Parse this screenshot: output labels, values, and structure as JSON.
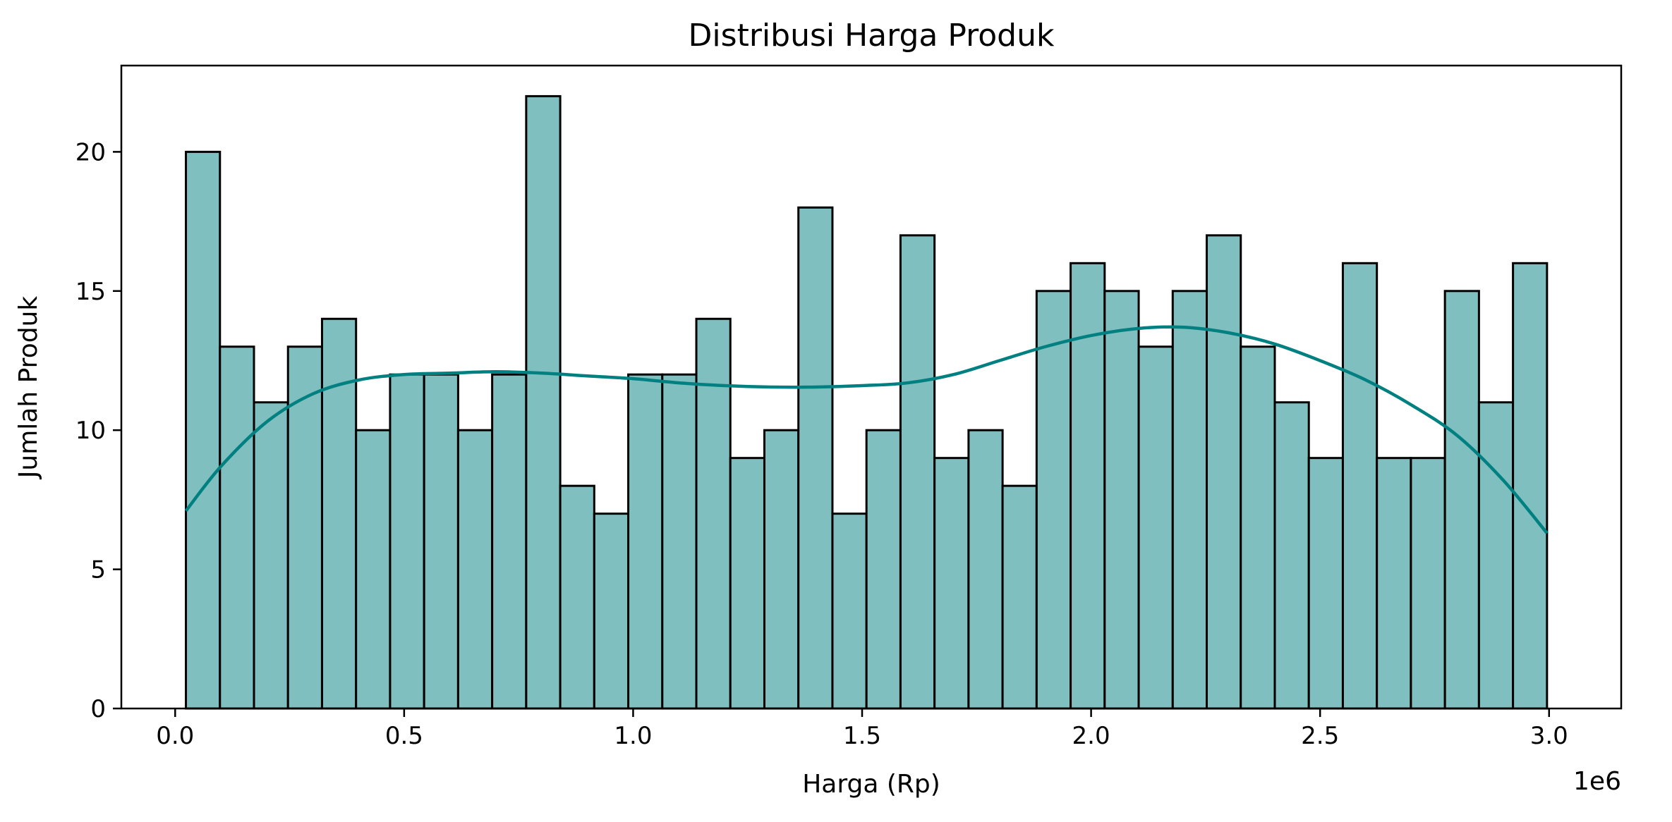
{
  "chart_data": {
    "type": "bar",
    "title": "Distribusi Harga Produk",
    "xlabel": "Harga (Rp)",
    "ylabel": "Jumlah Produk",
    "x_offset_label": "1e6",
    "x_scale": 1000000,
    "xlim": [
      -0.1175,
      3.1575
    ],
    "ylim": [
      0,
      23.1
    ],
    "x_ticks": [
      0.0,
      0.5,
      1.0,
      1.5,
      2.0,
      2.5,
      3.0
    ],
    "x_tick_labels": [
      "0.0",
      "0.5",
      "1.0",
      "1.5",
      "2.0",
      "2.5",
      "3.0"
    ],
    "y_ticks": [
      0,
      5,
      10,
      15,
      20
    ],
    "y_tick_labels": [
      "0",
      "5",
      "10",
      "15",
      "20"
    ],
    "grid": false,
    "bin_start": 0.0235,
    "bin_width": 0.0743,
    "values": [
      20,
      13,
      11,
      13,
      14,
      10,
      12,
      12,
      10,
      12,
      22,
      8,
      7,
      12,
      12,
      14,
      9,
      10,
      18,
      7,
      10,
      17,
      9,
      10,
      8,
      15,
      16,
      15,
      13,
      15,
      17,
      13,
      11,
      9,
      16,
      9,
      9,
      15,
      11,
      16
    ],
    "kde": {
      "x": [
        0.0235,
        0.1,
        0.2,
        0.3,
        0.4,
        0.5,
        0.6,
        0.7,
        0.8,
        0.9,
        1.0,
        1.1,
        1.2,
        1.3,
        1.4,
        1.5,
        1.6,
        1.7,
        1.8,
        1.9,
        2.0,
        2.1,
        2.2,
        2.3,
        2.4,
        2.5,
        2.6,
        2.7,
        2.8,
        2.9,
        2.9955
      ],
      "y": [
        7.1,
        8.7,
        10.3,
        11.3,
        11.8,
        12.0,
        12.05,
        12.1,
        12.05,
        11.95,
        11.85,
        11.7,
        11.6,
        11.55,
        11.55,
        11.6,
        11.7,
        12.0,
        12.5,
        13.0,
        13.4,
        13.65,
        13.7,
        13.5,
        13.1,
        12.5,
        11.8,
        10.9,
        9.8,
        8.2,
        6.3
      ]
    },
    "colors": {
      "bar_fill": "#80bfbf",
      "bar_edge": "#000000",
      "kde_line": "#008080"
    }
  }
}
